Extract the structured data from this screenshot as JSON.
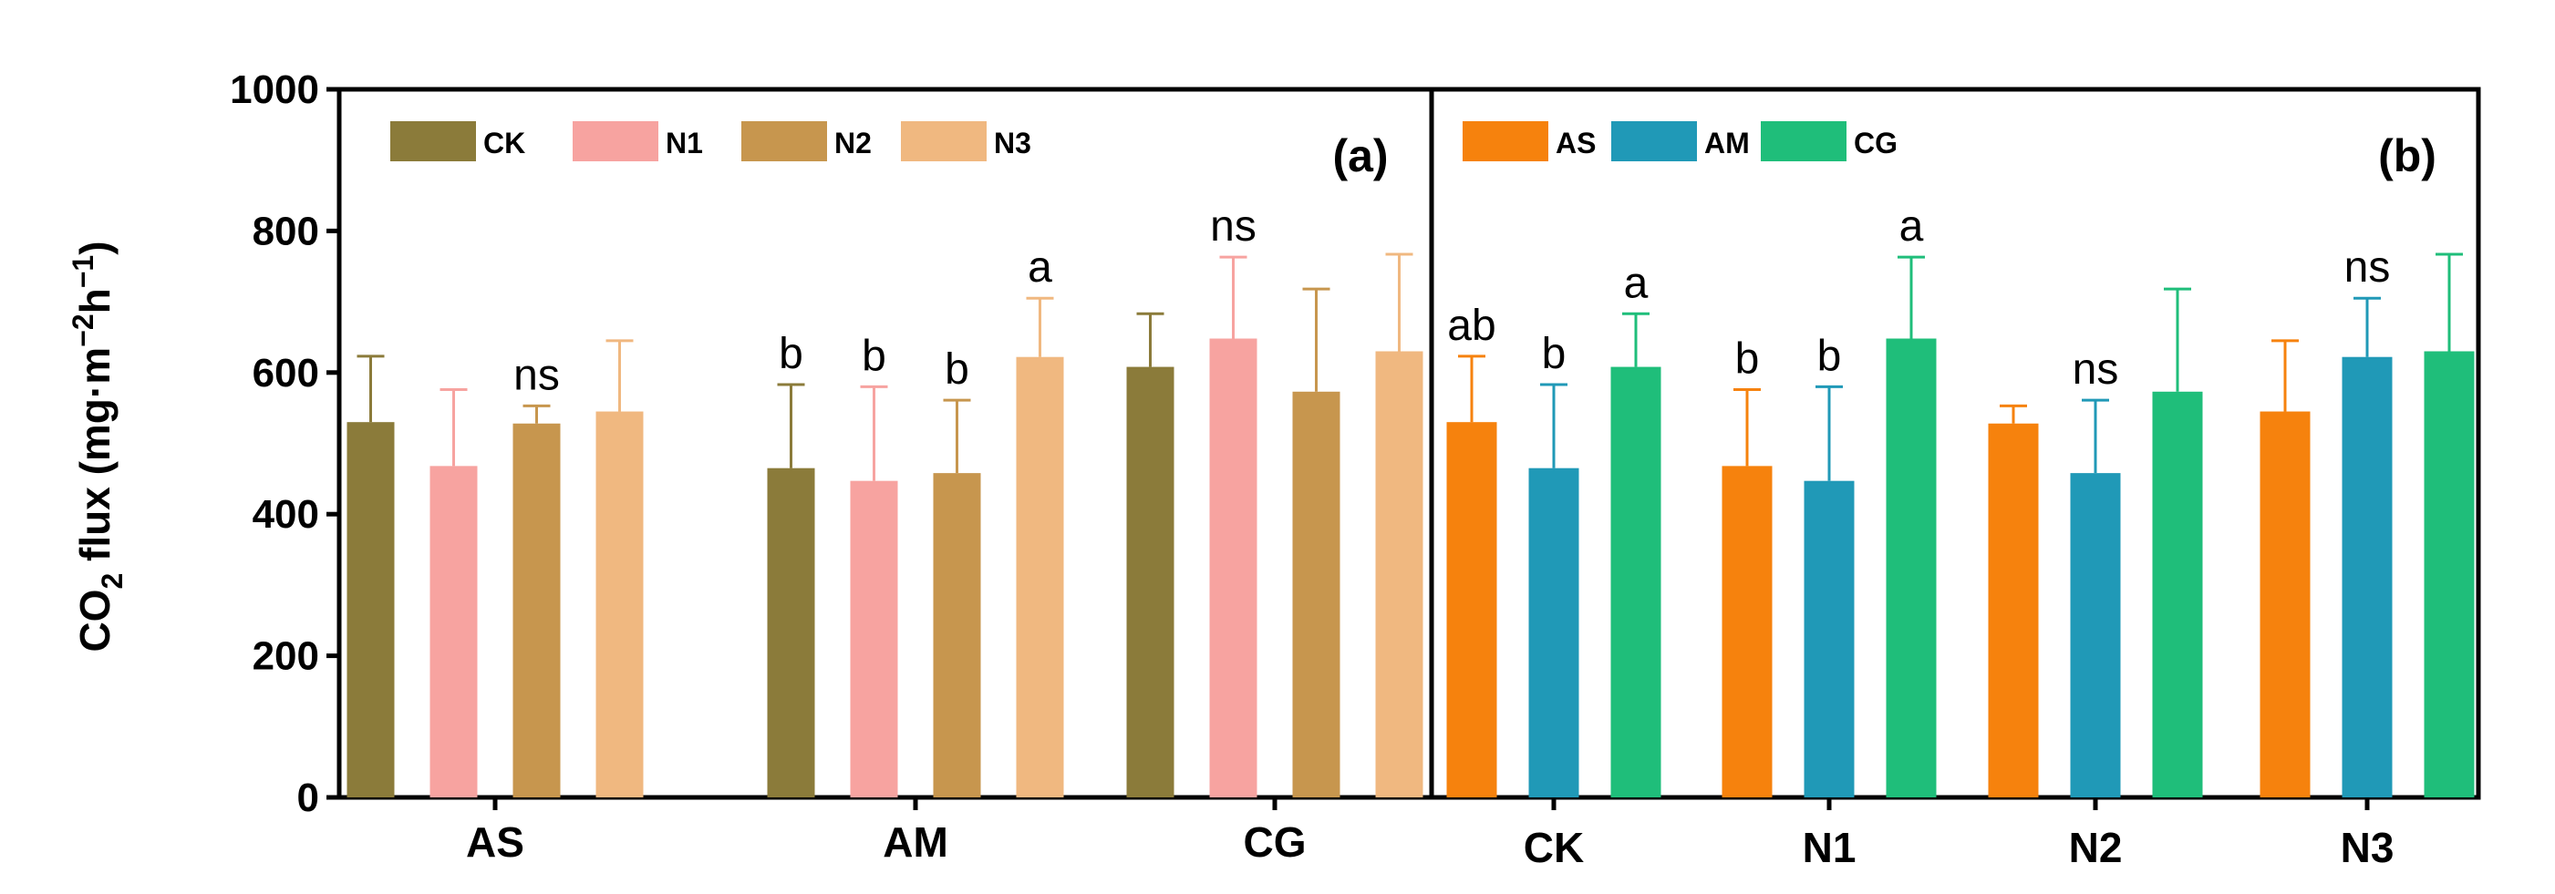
{
  "chart_data": {
    "type": "bar",
    "ylabel": "CO₂ flux (mg·m⁻²h⁻¹)",
    "ylabel_parts": {
      "pre": "CO",
      "sub": "2",
      "mid": " flux (mg·m",
      "sup1": "−2",
      "mid2": "h",
      "sup2": "−1",
      "post": ")"
    },
    "ylim": [
      0,
      1000
    ],
    "yticks": [
      0,
      200,
      400,
      600,
      800,
      1000
    ],
    "panels": [
      {
        "label": "(a)",
        "categories": [
          "AS",
          "AM",
          "CG"
        ],
        "series": [
          {
            "name": "CK",
            "color": "#8B7B3A",
            "values": [
              530,
              465,
              608
            ],
            "errors": [
              93,
              118,
              75
            ]
          },
          {
            "name": "N1",
            "color": "#F7A3A0",
            "values": [
              468,
              447,
              648
            ],
            "errors": [
              108,
              133,
              115
            ]
          },
          {
            "name": "N2",
            "color": "#C7964E",
            "values": [
              528,
              458,
              573
            ],
            "errors": [
              25,
              103,
              145
            ]
          },
          {
            "name": "N3",
            "color": "#F0B880",
            "values": [
              545,
              622,
              630
            ],
            "errors": [
              100,
              83,
              137
            ]
          }
        ],
        "annotations": [
          {
            "category": 0,
            "series": 2,
            "text": "ns"
          },
          {
            "category": 1,
            "series": 0,
            "text": "b"
          },
          {
            "category": 1,
            "series": 1,
            "text": "b"
          },
          {
            "category": 1,
            "series": 2,
            "text": "b"
          },
          {
            "category": 1,
            "series": 3,
            "text": "a"
          },
          {
            "category": 2,
            "series": 1,
            "text": "ns"
          }
        ]
      },
      {
        "label": "(b)",
        "categories": [
          "CK",
          "N1",
          "N2",
          "N3"
        ],
        "series": [
          {
            "name": "AS",
            "color": "#F6820D",
            "values": [
              530,
              468,
              528,
              545
            ],
            "errors": [
              93,
              108,
              25,
              100
            ]
          },
          {
            "name": "AM",
            "color": "#2099B7",
            "values": [
              465,
              447,
              458,
              622
            ],
            "errors": [
              118,
              133,
              103,
              83
            ]
          },
          {
            "name": "CG",
            "color": "#1FBE7A",
            "values": [
              608,
              648,
              573,
              630
            ],
            "errors": [
              75,
              115,
              145,
              137
            ]
          }
        ],
        "annotations": [
          {
            "category": 0,
            "series": 0,
            "text": "ab"
          },
          {
            "category": 0,
            "series": 1,
            "text": "b"
          },
          {
            "category": 0,
            "series": 2,
            "text": "a"
          },
          {
            "category": 1,
            "series": 0,
            "text": "b"
          },
          {
            "category": 1,
            "series": 1,
            "text": "b"
          },
          {
            "category": 1,
            "series": 2,
            "text": "a"
          },
          {
            "category": 2,
            "series": 1,
            "text": "ns"
          },
          {
            "category": 3,
            "series": 1,
            "text": "ns"
          }
        ]
      }
    ]
  }
}
